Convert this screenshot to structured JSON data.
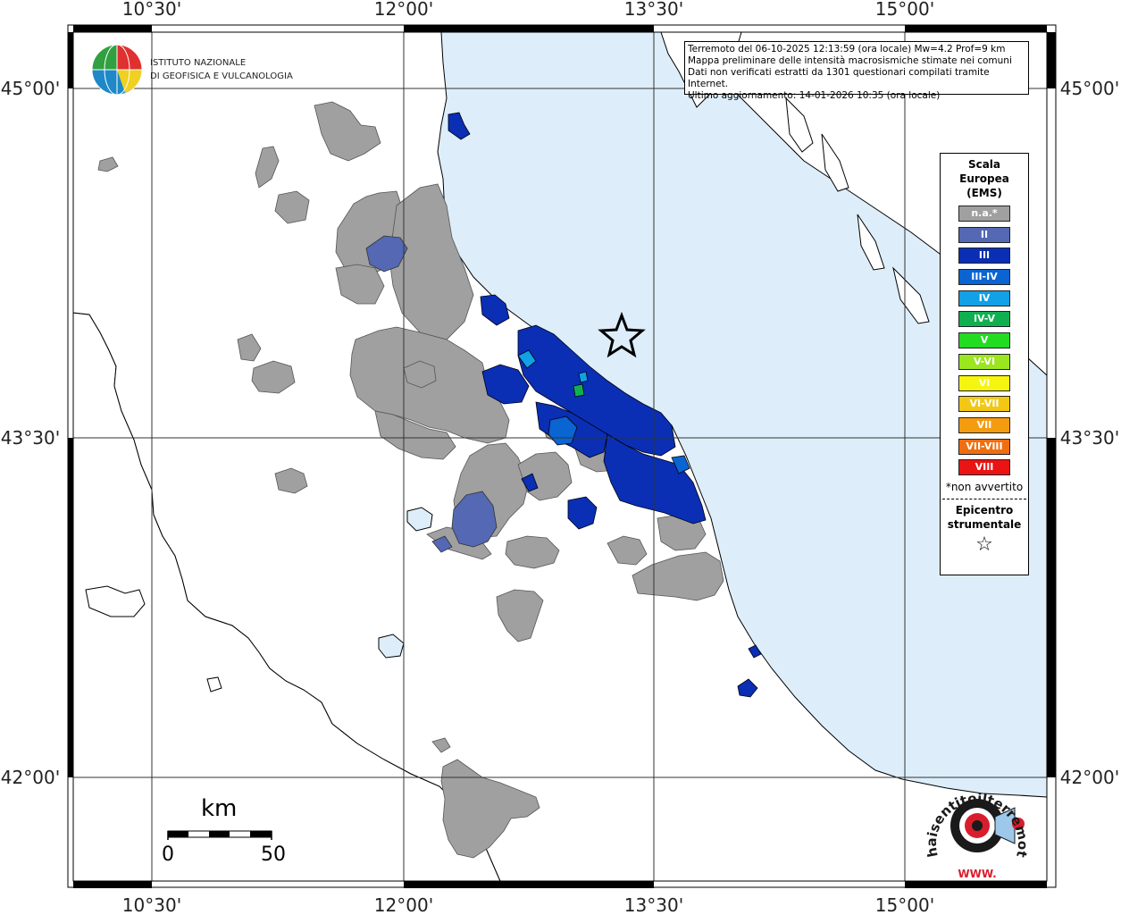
{
  "header": {
    "institute_line1": "ISTITUTO NAZIONALE",
    "institute_line2": "DI GEOFISICA E VULCANOLOGIA"
  },
  "info": {
    "line1": "Terremoto del 06-10-2025 12:13:59 (ora locale) Mw=4.2 Prof=9 km",
    "line2": "Mappa preliminare delle intensità macrosismiche stimate nei comuni",
    "line3": "Dati non verificati estratti da 1301 questionari compilati tramite Internet.",
    "line4": "Ultimo aggiornamento: 14-01-2026 10:35 (ora locale)"
  },
  "axes": {
    "lon_ticks": [
      "10°30'",
      "12°00'",
      "13°30'",
      "15°00'"
    ],
    "lat_ticks": [
      "45°00'",
      "43°30'",
      "42°00'"
    ]
  },
  "legend": {
    "title_line1": "Scala",
    "title_line2": "Europea",
    "title_line3": "(EMS)",
    "items": [
      {
        "label": "n.a.*",
        "color": "#a0a0a0"
      },
      {
        "label": "II",
        "color": "#5468b4"
      },
      {
        "label": "III",
        "color": "#0a2fb4"
      },
      {
        "label": "III-IV",
        "color": "#0a64d2"
      },
      {
        "label": "IV",
        "color": "#12a0e6"
      },
      {
        "label": "IV-V",
        "color": "#10b050"
      },
      {
        "label": "V",
        "color": "#22dc22"
      },
      {
        "label": "V-VI",
        "color": "#9be61e"
      },
      {
        "label": "VI",
        "color": "#f5f50f"
      },
      {
        "label": "VI-VII",
        "color": "#f2c814"
      },
      {
        "label": "VII",
        "color": "#f59b0f"
      },
      {
        "label": "VII-VIII",
        "color": "#f06e0f"
      },
      {
        "label": "VIII",
        "color": "#eb1414"
      }
    ],
    "note": "*non avvertito",
    "epicenter_line1": "Epicentro",
    "epicenter_line2": "strumentale",
    "epicenter_symbol": "☆"
  },
  "scale_bar": {
    "unit": "km",
    "min_label": "0",
    "max_label": "50"
  },
  "logo": {
    "text": "haisentitoilterremoto.it",
    "url_text": "WWW."
  },
  "colors": {
    "sea": "#ddeefa",
    "land": "#ffffff",
    "na": "#a0a0a0",
    "ii": "#5468b4",
    "iii": "#0a2fb4",
    "iiiiv": "#0a64d2",
    "iv": "#12a0e6",
    "ivv": "#10b050"
  }
}
